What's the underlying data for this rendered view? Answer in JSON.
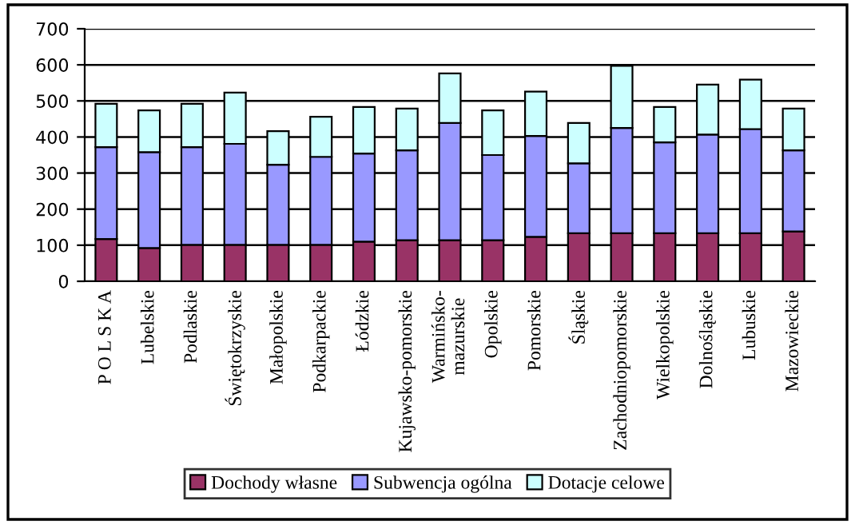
{
  "chart_data": {
    "type": "bar",
    "stacked": true,
    "categories": [
      "P O L S K A",
      "Lubelskie",
      "Podlaskie",
      "Świętokrzyskie",
      "Małopolskie",
      "Podkarpackie",
      "Łódzkie",
      "Kujawsko-pomorskie",
      "Warmińsko-\nmazurskie",
      "Opolskie",
      "Pomorskie",
      "Śląskie",
      "Zachodniopomorskie",
      "Wielkopolskie",
      "Dolnośląskie",
      "Lubuskie",
      "Mazowieckie"
    ],
    "series": [
      {
        "name": "Dochody własne",
        "color": "#993366",
        "values": [
          117,
          92,
          101,
          101,
          101,
          101,
          110,
          114,
          114,
          114,
          123,
          133,
          133,
          133,
          133,
          133,
          138
        ]
      },
      {
        "name": "Subwencja ogólna",
        "color": "#9999ff",
        "values": [
          255,
          266,
          271,
          280,
          222,
          244,
          244,
          249,
          325,
          236,
          280,
          194,
          292,
          252,
          274,
          289,
          225
        ]
      },
      {
        "name": "Dotacje celowe",
        "color": "#ccffff",
        "values": [
          120,
          116,
          120,
          142,
          93,
          111,
          129,
          116,
          137,
          124,
          123,
          112,
          172,
          98,
          138,
          137,
          116
        ]
      }
    ],
    "ylim": [
      0,
      700
    ],
    "yticks": [
      0,
      100,
      200,
      300,
      400,
      500,
      600,
      700
    ],
    "grid": "y",
    "legend": "bottom"
  }
}
